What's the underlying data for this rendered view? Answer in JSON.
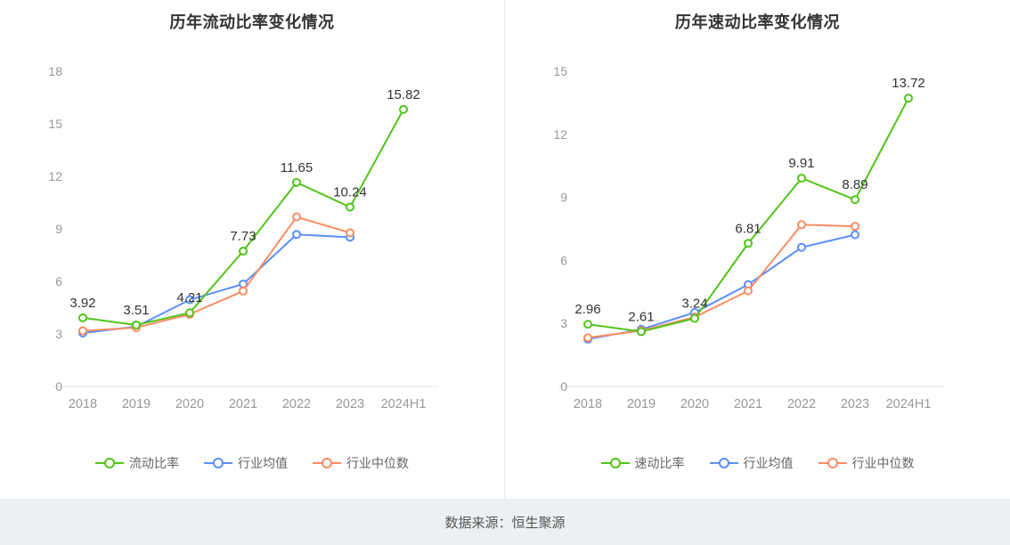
{
  "page": {
    "source_text": "数据来源：恒生聚源"
  },
  "chart_data": [
    {
      "type": "line",
      "title": "历年流动比率变化情况",
      "categories": [
        "2018",
        "2019",
        "2020",
        "2021",
        "2022",
        "2023",
        "2024H1"
      ],
      "ylim": [
        0,
        18
      ],
      "yticks": [
        0,
        3,
        6,
        9,
        12,
        15,
        18
      ],
      "grid": false,
      "legend_position": "bottom",
      "series": [
        {
          "name": "流动比率",
          "color": "#52c41a",
          "show_labels": true,
          "values": [
            3.92,
            3.51,
            4.21,
            7.73,
            11.65,
            10.24,
            15.82
          ]
        },
        {
          "name": "行业均值",
          "color": "#5b8ff9",
          "show_labels": false,
          "values": [
            3.05,
            3.42,
            4.95,
            5.85,
            8.68,
            8.52,
            null
          ]
        },
        {
          "name": "行业中位数",
          "color": "#fa8c64",
          "show_labels": false,
          "values": [
            3.18,
            3.36,
            4.12,
            5.45,
            9.68,
            8.78,
            null
          ]
        }
      ]
    },
    {
      "type": "line",
      "title": "历年速动比率变化情况",
      "categories": [
        "2018",
        "2019",
        "2020",
        "2021",
        "2022",
        "2023",
        "2024H1"
      ],
      "ylim": [
        0,
        15
      ],
      "yticks": [
        0,
        3,
        6,
        9,
        12,
        15
      ],
      "grid": false,
      "legend_position": "bottom",
      "series": [
        {
          "name": "速动比率",
          "color": "#52c41a",
          "show_labels": true,
          "values": [
            2.96,
            2.61,
            3.24,
            6.81,
            9.91,
            8.89,
            13.72
          ]
        },
        {
          "name": "行业均值",
          "color": "#5b8ff9",
          "show_labels": false,
          "values": [
            2.25,
            2.72,
            3.52,
            4.85,
            6.62,
            7.22,
            null
          ]
        },
        {
          "name": "行业中位数",
          "color": "#fa8c64",
          "show_labels": false,
          "values": [
            2.32,
            2.66,
            3.3,
            4.55,
            7.7,
            7.62,
            null
          ]
        }
      ]
    }
  ]
}
